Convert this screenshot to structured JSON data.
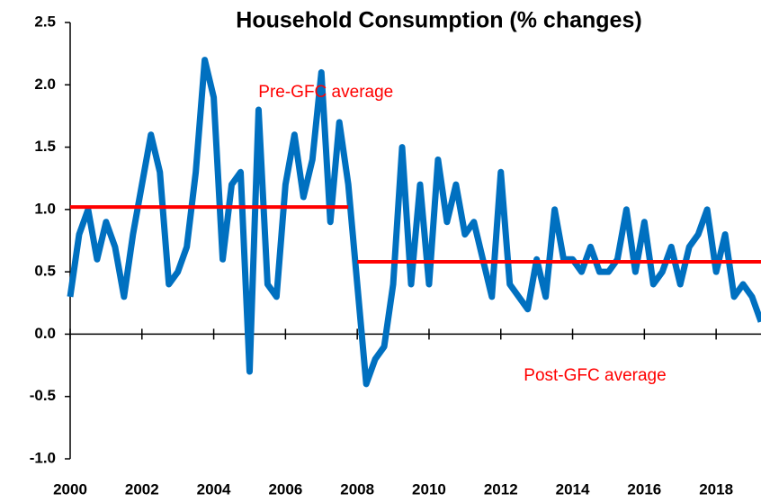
{
  "chart_data": {
    "type": "line",
    "title": "Household Consumption (% changes)",
    "categories": [
      "2000",
      null,
      null,
      null,
      null,
      null,
      null,
      null,
      "2002",
      null,
      null,
      null,
      null,
      null,
      null,
      null,
      "2004",
      null,
      null,
      null,
      null,
      null,
      null,
      null,
      "2006",
      null,
      null,
      null,
      null,
      null,
      null,
      null,
      "2008",
      null,
      null,
      null,
      null,
      null,
      null,
      null,
      "2010",
      null,
      null,
      null,
      null,
      null,
      null,
      null,
      "2012",
      null,
      null,
      null,
      null,
      null,
      null,
      null,
      "2014",
      null,
      null,
      null,
      null,
      null,
      null,
      null,
      "2016",
      null,
      null,
      null,
      null,
      null,
      null,
      null,
      "2018",
      null,
      null,
      null,
      null,
      null
    ],
    "series": [
      {
        "color": "#0070c0",
        "values": [
          0.3,
          0.8,
          1.0,
          0.6,
          0.9,
          0.7,
          0.3,
          0.8,
          1.2,
          1.6,
          1.3,
          0.4,
          0.5,
          0.7,
          1.3,
          2.2,
          1.9,
          0.6,
          1.2,
          1.3,
          -0.3,
          1.8,
          0.4,
          0.3,
          1.2,
          1.6,
          1.1,
          1.4,
          2.1,
          0.9,
          1.7,
          1.2,
          0.4,
          -0.4,
          -0.2,
          -0.1,
          0.4,
          1.5,
          0.4,
          1.2,
          0.4,
          1.4,
          0.9,
          1.2,
          0.8,
          0.9,
          0.6,
          0.3,
          1.3,
          0.4,
          0.3,
          0.2,
          0.6,
          0.3,
          1.0,
          0.6,
          0.6,
          0.5,
          0.7,
          0.5,
          0.5,
          0.6,
          1.0,
          0.5,
          0.9,
          0.4,
          0.5,
          0.7,
          0.4,
          0.7,
          0.8,
          1.0,
          0.5,
          0.8,
          0.3,
          0.4,
          0.3,
          0.1
        ]
      },
      {
        "name": "Pre-GFC average",
        "color": "#ff0000",
        "values": [
          1.02,
          1.02,
          1.02,
          1.02,
          1.02,
          1.02,
          1.02,
          1.02,
          1.02,
          1.02,
          1.02,
          1.02,
          1.02,
          1.02,
          1.02,
          1.02,
          1.02,
          1.02,
          1.02,
          1.02,
          1.02,
          1.02,
          1.02,
          1.02,
          1.02,
          1.02,
          1.02,
          1.02,
          1.02,
          1.02,
          1.02,
          1.02,
          null,
          null,
          null,
          null,
          null,
          null,
          null,
          null,
          null,
          null,
          null,
          null,
          null,
          null,
          null,
          null,
          null,
          null,
          null,
          null,
          null,
          null,
          null,
          null,
          null,
          null,
          null,
          null,
          null,
          null,
          null,
          null,
          null,
          null,
          null,
          null,
          null,
          null,
          null,
          null,
          null,
          null,
          null,
          null,
          null,
          null
        ]
      },
      {
        "name": "Post-GFC average",
        "color": "#ff0000",
        "values": [
          null,
          null,
          null,
          null,
          null,
          null,
          null,
          null,
          null,
          null,
          null,
          null,
          null,
          null,
          null,
          null,
          null,
          null,
          null,
          null,
          null,
          null,
          null,
          null,
          null,
          null,
          null,
          null,
          null,
          null,
          null,
          null,
          0.58,
          0.58,
          0.58,
          0.58,
          0.58,
          0.58,
          0.58,
          0.58,
          0.58,
          0.58,
          0.58,
          0.58,
          0.58,
          0.58,
          0.58,
          0.58,
          0.58,
          0.58,
          0.58,
          0.58,
          0.58,
          0.58,
          0.58,
          0.58,
          0.58,
          0.58,
          0.58,
          0.58,
          0.58,
          0.58,
          0.58,
          0.58,
          0.58,
          0.58,
          0.58,
          0.58,
          0.58,
          0.58,
          0.58,
          0.58,
          0.58,
          0.58,
          0.58,
          0.58,
          0.58,
          0.58
        ]
      }
    ],
    "ylim": [
      -1.0,
      2.5
    ],
    "yticks": [
      {
        "value": -1,
        "label": "-1.0"
      },
      {
        "value": -0.5,
        "label": "-0.5"
      },
      {
        "value": 0,
        "label": "0.0"
      },
      {
        "value": 0.5,
        "label": "0.5"
      },
      {
        "value": 1,
        "label": "1.0"
      },
      {
        "value": 1.5,
        "label": "1.5"
      },
      {
        "value": 2,
        "label": "2.0"
      },
      {
        "value": 2.5,
        "label": "2.5"
      }
    ]
  }
}
